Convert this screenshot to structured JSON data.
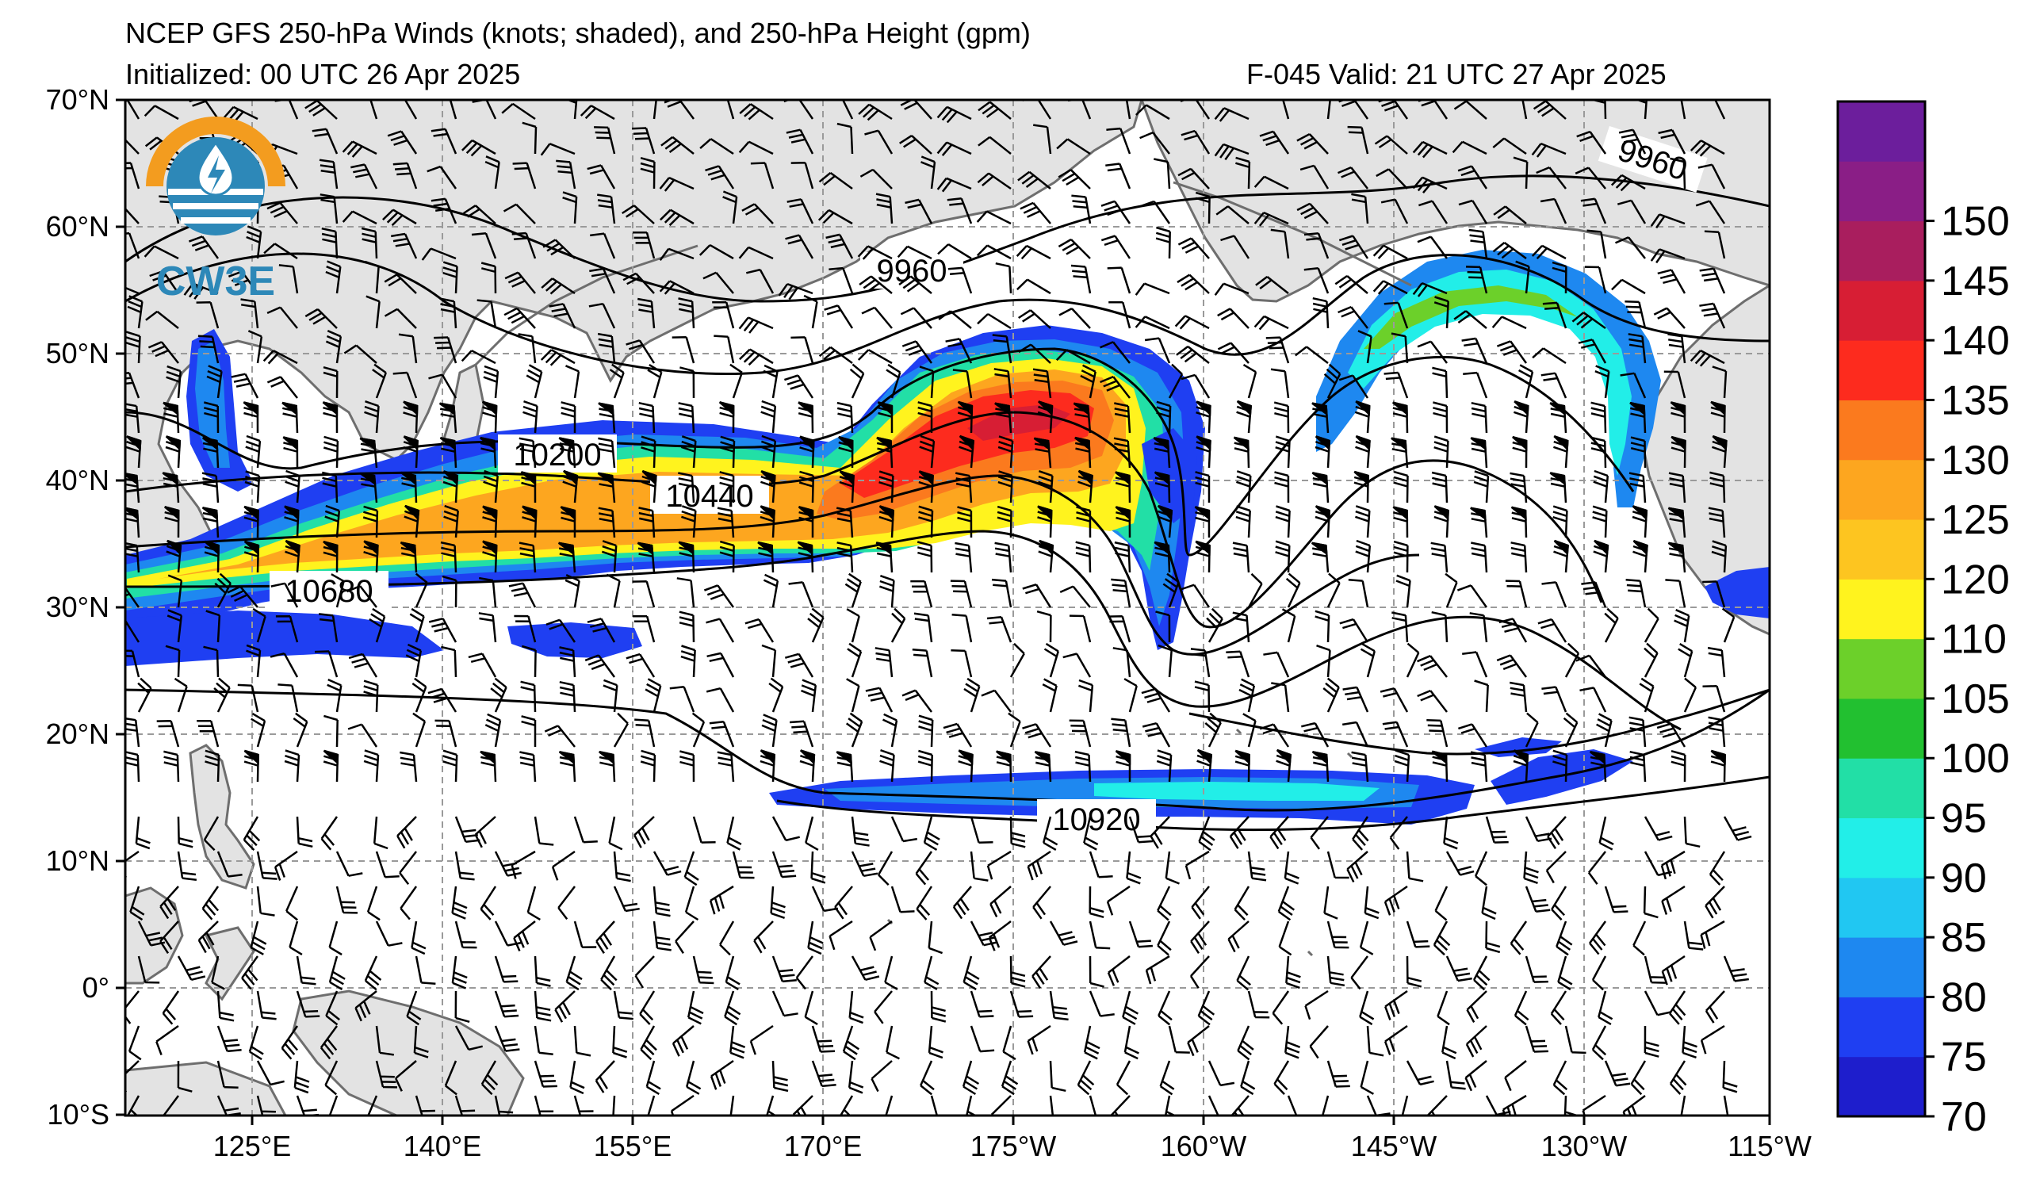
{
  "header": {
    "title": "NCEP GFS 250-hPa Winds (knots; shaded), and 250-hPa Height (gpm)",
    "initialized": "Initialized: 00 UTC 26 Apr 2025",
    "valid": "F-045  Valid: 21 UTC 27 Apr 2025"
  },
  "logo": {
    "text": "CW3E"
  },
  "axes": {
    "lat_labels": [
      "70°N",
      "60°N",
      "50°N",
      "40°N",
      "30°N",
      "20°N",
      "10°N",
      "0°",
      "10°S"
    ],
    "lon_labels": [
      "125°E",
      "140°E",
      "155°E",
      "170°E",
      "175°W",
      "160°W",
      "145°W",
      "130°W",
      "115°W"
    ]
  },
  "colorbar": {
    "labels": [
      "70",
      "75",
      "80",
      "85",
      "90",
      "95",
      "100",
      "105",
      "110",
      "120",
      "125",
      "130",
      "135",
      "140",
      "145",
      "150"
    ],
    "colors": [
      "#1e1ecc",
      "#1f3ff2",
      "#1e88f0",
      "#21c7f2",
      "#22eee8",
      "#22dfa6",
      "#22c030",
      "#6cd02a",
      "#fff31e",
      "#fdc520",
      "#fda61f",
      "#fb7a1e",
      "#fd2b1e",
      "#d71e34",
      "#a91e5e",
      "#8a1e86",
      "#6c1e9c"
    ]
  },
  "contours": {
    "labels": [
      "9960",
      "9960",
      "10200",
      "10440",
      "10680",
      "10920"
    ]
  },
  "colors": {
    "land": "#e3e3e3",
    "coast": "#6e6e6e",
    "grid": "#9a9a9a"
  }
}
